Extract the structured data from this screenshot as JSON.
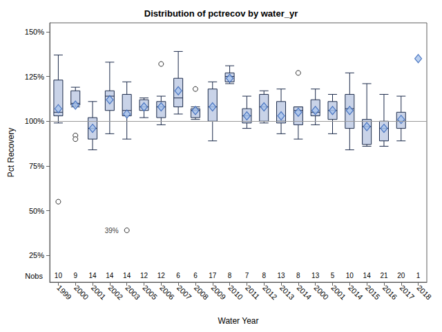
{
  "chart_data": {
    "type": "boxplot",
    "title": "Distribution of pctrecov by water_yr",
    "x_label": "Water Year",
    "y_label": "Pct Recovery",
    "categories": [
      "1999",
      "2000",
      "2001",
      "2002",
      "2003",
      "2005",
      "2006",
      "2007",
      "2008",
      "2009",
      "2010",
      "2011",
      "2012",
      "2013",
      "2014",
      "2000",
      "2001",
      "2014",
      "2015",
      "2016",
      "2017",
      "2018"
    ],
    "boxes": [
      [
        99,
        103,
        105,
        123,
        137
      ],
      [
        108,
        109,
        110,
        117,
        119
      ],
      [
        84,
        90,
        96,
        102,
        111
      ],
      [
        93,
        106,
        114,
        117,
        133
      ],
      [
        90,
        103,
        106,
        115,
        122
      ],
      [
        102,
        106,
        108,
        112,
        113
      ],
      [
        98,
        102,
        108,
        111,
        114
      ],
      [
        104,
        108,
        113,
        124,
        139
      ],
      [
        101,
        102,
        106,
        107,
        108
      ],
      [
        89,
        100,
        108,
        118,
        122
      ],
      [
        121,
        122,
        125,
        127,
        131
      ],
      [
        96,
        99,
        103,
        107,
        114
      ],
      [
        99,
        100,
        108,
        115,
        117
      ],
      [
        93,
        99,
        100,
        111,
        118
      ],
      [
        90,
        98,
        106,
        108,
        108
      ],
      [
        98,
        103,
        105,
        112,
        118
      ],
      [
        93,
        101,
        106,
        111,
        115
      ],
      [
        84,
        96,
        107,
        115,
        127
      ],
      [
        86,
        87,
        97,
        101,
        121
      ],
      [
        86,
        89,
        96,
        100,
        115
      ],
      [
        89,
        96,
        100,
        105,
        114
      ],
      null
    ],
    "means": [
      107,
      109,
      96,
      112,
      104,
      108,
      108,
      117,
      106,
      108,
      124,
      103,
      108,
      103,
      105,
      106,
      106,
      106,
      97,
      96,
      101,
      135
    ],
    "outliers": [
      [
        55
      ],
      [
        92,
        90
      ],
      [],
      [],
      [
        39
      ],
      [],
      [
        132
      ],
      [],
      [
        118
      ],
      [],
      [],
      [],
      [],
      [],
      [
        127
      ],
      [],
      [],
      [],
      [],
      [],
      [],
      []
    ],
    "nobs_label": "Nobs",
    "nobs": [
      10,
      9,
      14,
      14,
      14,
      12,
      12,
      6,
      6,
      17,
      8,
      7,
      8,
      13,
      8,
      13,
      5,
      10,
      14,
      21,
      20,
      1
    ],
    "annotations": [
      {
        "category_index": 4,
        "y": 39,
        "text": "39%"
      }
    ],
    "reference_line": 100,
    "ylim": [
      10,
      155
    ],
    "yticks": [
      {
        "value": 25,
        "label": "25%"
      },
      {
        "value": 50,
        "label": "50%"
      },
      {
        "value": 75,
        "label": "75%"
      },
      {
        "value": 100,
        "label": "100%"
      },
      {
        "value": 125,
        "label": "125%"
      },
      {
        "value": 150,
        "label": "150%"
      }
    ],
    "grid": false,
    "color": "#c9d3e8"
  }
}
